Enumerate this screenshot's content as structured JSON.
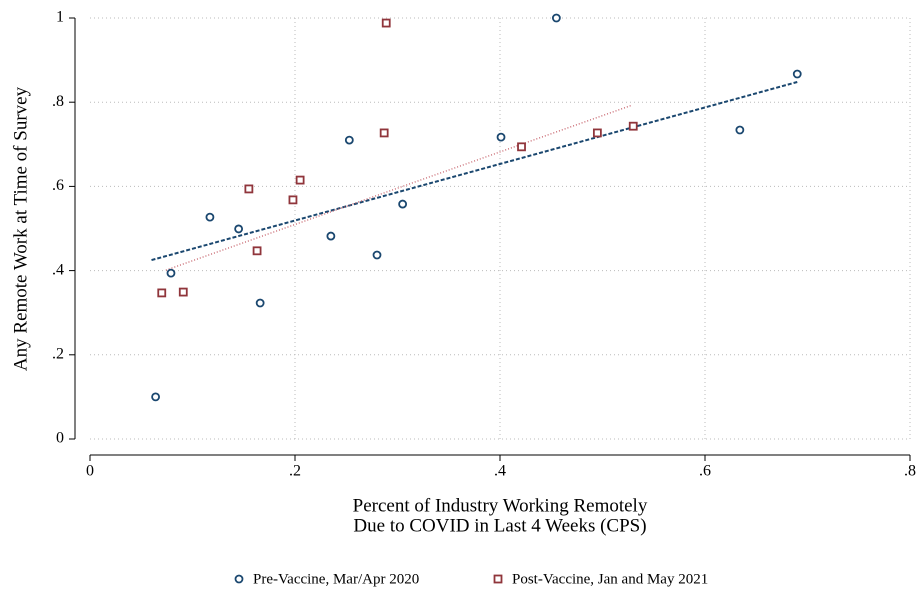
{
  "chart_data": {
    "type": "scatter",
    "x_label": [
      "Percent of Industry Working Remotely",
      "Due to COVID in Last 4 Weeks (CPS)"
    ],
    "y_label": "Any Remote Work at Time of Survey",
    "xlim": [
      0,
      0.8
    ],
    "xticks": [
      0,
      {
        "value": 0.2,
        "label": ".2"
      },
      {
        "value": 0.4,
        "label": ".4"
      },
      {
        "value": 0.6,
        "label": ".6"
      },
      {
        "value": 0.8,
        "label": ".8"
      }
    ],
    "ylim": [
      0,
      1
    ],
    "yticks": [
      0,
      {
        "value": 0.2,
        "label": ".2"
      },
      {
        "value": 0.4,
        "label": ".4"
      },
      {
        "value": 0.6,
        "label": ".6"
      },
      {
        "value": 0.8,
        "label": ".8"
      },
      1
    ],
    "grid": true,
    "legend": "bottom",
    "series": [
      {
        "name": "Pre-Vaccine, Mar/Apr 2020",
        "color": "#1a476f",
        "marker": "circle",
        "x": [
          0.064,
          0.079,
          0.117,
          0.145,
          0.166,
          0.235,
          0.253,
          0.28,
          0.305,
          0.401,
          0.455,
          0.634,
          0.69
        ],
        "values": [
          0.1,
          0.394,
          0.527,
          0.499,
          0.323,
          0.482,
          0.71,
          0.437,
          0.558,
          0.717,
          1.0,
          0.734,
          0.867
        ]
      },
      {
        "name": "Post-Vaccine, Jan and May 2021",
        "color": "#90353b",
        "marker": "square",
        "x": [
          0.07,
          0.091,
          0.155,
          0.163,
          0.198,
          0.205,
          0.287,
          0.289,
          0.421,
          0.495,
          0.53
        ],
        "values": [
          0.347,
          0.349,
          0.594,
          0.447,
          0.568,
          0.615,
          0.727,
          0.988,
          0.694,
          0.727,
          0.743
        ]
      }
    ],
    "fit_lines": [
      {
        "color": "#1a476f",
        "style": "dashed",
        "x": [
          0.06,
          0.69
        ],
        "values": [
          0.425,
          0.848
        ]
      },
      {
        "color": "#c0505a",
        "style": "dotted",
        "x": [
          0.074,
          0.529
        ],
        "values": [
          0.401,
          0.793
        ]
      }
    ]
  }
}
